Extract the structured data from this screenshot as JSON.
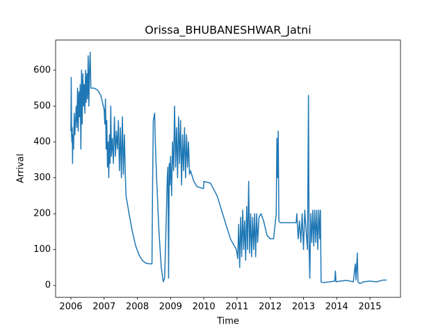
{
  "chart_data": {
    "type": "line",
    "title": "Orissa_BHUBANESHWAR_Jatni",
    "xlabel": "Time",
    "ylabel": "Arrival",
    "color": "#1f77b4",
    "x": [
      2006.0,
      2006.01,
      2006.02,
      2006.03,
      2006.04,
      2006.05,
      2006.06,
      2006.08,
      2006.1,
      2006.12,
      2006.14,
      2006.16,
      2006.18,
      2006.2,
      2006.22,
      2006.24,
      2006.26,
      2006.28,
      2006.3,
      2006.32,
      2006.34,
      2006.36,
      2006.38,
      2006.4,
      2006.42,
      2006.44,
      2006.46,
      2006.48,
      2006.5,
      2006.52,
      2006.54,
      2006.56,
      2006.58,
      2006.6,
      2006.7,
      2006.8,
      2006.9,
      2007.0,
      2007.02,
      2007.04,
      2007.06,
      2007.08,
      2007.1,
      2007.12,
      2007.14,
      2007.16,
      2007.18,
      2007.2,
      2007.22,
      2007.25,
      2007.28,
      2007.31,
      2007.34,
      2007.37,
      2007.4,
      2007.43,
      2007.46,
      2007.49,
      2007.52,
      2007.55,
      2007.58,
      2007.61,
      2007.64,
      2007.66,
      2007.75,
      2007.85,
      2007.95,
      2008.05,
      2008.15,
      2008.25,
      2008.4,
      2008.44,
      2008.46,
      2008.48,
      2008.52,
      2008.54,
      2008.58,
      2008.65,
      2008.72,
      2008.78,
      2008.82,
      2008.86,
      2008.9,
      2008.92,
      2008.94,
      2008.96,
      2008.98,
      2009.0,
      2009.03,
      2009.06,
      2009.09,
      2009.12,
      2009.15,
      2009.18,
      2009.21,
      2009.24,
      2009.27,
      2009.3,
      2009.33,
      2009.36,
      2009.39,
      2009.42,
      2009.45,
      2009.48,
      2009.51,
      2009.54,
      2009.57,
      2009.6,
      2009.7,
      2009.8,
      2009.99,
      2010.0,
      2010.2,
      2010.4,
      2010.6,
      2010.8,
      2010.98,
      2011.02,
      2011.05,
      2011.08,
      2011.11,
      2011.14,
      2011.17,
      2011.2,
      2011.23,
      2011.26,
      2011.29,
      2011.32,
      2011.35,
      2011.38,
      2011.41,
      2011.44,
      2011.47,
      2011.5,
      2011.53,
      2011.56,
      2011.59,
      2011.62,
      2011.66,
      2011.72,
      2011.8,
      2011.9,
      2012.0,
      2012.1,
      2012.18,
      2012.2,
      2012.22,
      2012.24,
      2012.26,
      2012.3,
      2012.5,
      2012.78,
      2012.8,
      2012.84,
      2012.88,
      2012.92,
      2012.96,
      2013.0,
      2013.04,
      2013.08,
      2013.12,
      2013.15,
      2013.17,
      2013.19,
      2013.22,
      2013.25,
      2013.28,
      2013.31,
      2013.34,
      2013.37,
      2013.4,
      2013.43,
      2013.46,
      2013.49,
      2013.51,
      2013.53,
      2013.6,
      2013.8,
      2013.94,
      2013.96,
      2013.98,
      2014.1,
      2014.3,
      2014.5,
      2014.56,
      2014.58,
      2014.62,
      2014.64,
      2014.7,
      2014.8,
      2015.0,
      2015.2,
      2015.4,
      2015.5
    ],
    "values": [
      430,
      580,
      420,
      400,
      440,
      340,
      420,
      380,
      480,
      420,
      460,
      500,
      440,
      550,
      430,
      540,
      470,
      560,
      380,
      600,
      450,
      590,
      500,
      560,
      480,
      600,
      510,
      590,
      520,
      640,
      500,
      600,
      650,
      550,
      550,
      545,
      530,
      490,
      450,
      520,
      380,
      460,
      330,
      400,
      300,
      420,
      340,
      500,
      360,
      410,
      340,
      470,
      360,
      430,
      380,
      460,
      320,
      440,
      300,
      470,
      310,
      420,
      300,
      250,
      200,
      150,
      110,
      85,
      70,
      62,
      60,
      60,
      300,
      460,
      480,
      400,
      300,
      150,
      50,
      10,
      20,
      150,
      300,
      330,
      20,
      340,
      280,
      360,
      250,
      400,
      320,
      500,
      330,
      440,
      300,
      470,
      340,
      460,
      280,
      420,
      320,
      440,
      300,
      420,
      330,
      400,
      310,
      320,
      290,
      275,
      270,
      290,
      285,
      250,
      190,
      130,
      100,
      75,
      170,
      50,
      190,
      80,
      210,
      100,
      180,
      70,
      220,
      100,
      290,
      90,
      200,
      80,
      190,
      100,
      200,
      80,
      200,
      120,
      190,
      200,
      180,
      140,
      130,
      130,
      200,
      410,
      300,
      430,
      180,
      175,
      175,
      175,
      200,
      130,
      180,
      120,
      200,
      100,
      210,
      150,
      100,
      530,
      100,
      20,
      200,
      120,
      210,
      110,
      210,
      120,
      210,
      100,
      210,
      130,
      210,
      10,
      8,
      10,
      12,
      40,
      10,
      12,
      14,
      10,
      60,
      15,
      90,
      10,
      5,
      10,
      12,
      10,
      15,
      15
    ],
    "xlim": [
      2005.54,
      2015.92
    ],
    "ylim": [
      -33,
      684
    ],
    "xticks": [
      2006,
      2007,
      2008,
      2009,
      2010,
      2011,
      2012,
      2013,
      2014,
      2015
    ],
    "yticks": [
      0,
      100,
      200,
      300,
      400,
      500,
      600
    ]
  }
}
